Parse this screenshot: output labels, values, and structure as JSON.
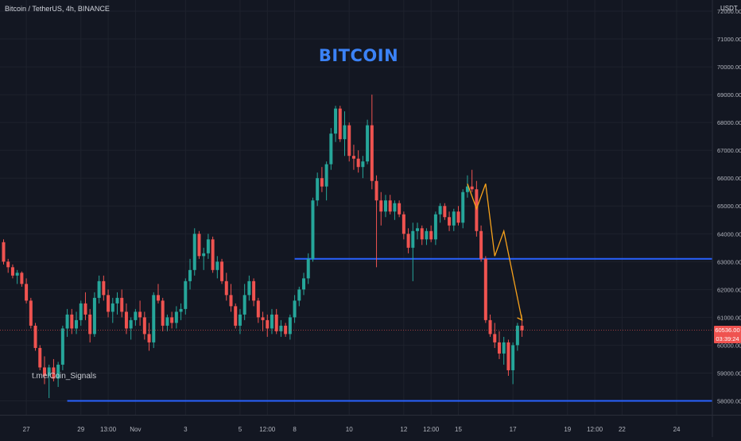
{
  "header": {
    "symbol": "Bitcoin / TetherUS, 4h, BINANCE",
    "currency": "USDT"
  },
  "headline": "BITCOIN",
  "watermark": "t.me/Coin_Signals",
  "last_price": {
    "price": "60536.00",
    "countdown": "03:39:24"
  },
  "colors": {
    "background": "#131722",
    "up": "#26a69a",
    "down": "#ef5350",
    "levels": "#2962ff",
    "projection": "#f7a21b",
    "headline": "#3b82f6"
  },
  "chart_data": {
    "type": "candlestick",
    "ylim": [
      57500,
      72400
    ],
    "y_ticks": [
      58000,
      59000,
      60000,
      61000,
      62000,
      63000,
      64000,
      65000,
      66000,
      67000,
      68000,
      69000,
      70000,
      71000,
      72000
    ],
    "x_ticks": [
      {
        "label": "27",
        "index": 5
      },
      {
        "label": "29",
        "index": 17
      },
      {
        "label": "13:00",
        "index": 23
      },
      {
        "label": "Nov",
        "index": 29
      },
      {
        "label": "3",
        "index": 40
      },
      {
        "label": "5",
        "index": 52
      },
      {
        "label": "12:00",
        "index": 58
      },
      {
        "label": "8",
        "index": 64
      },
      {
        "label": "10",
        "index": 76
      },
      {
        "label": "12",
        "index": 88
      },
      {
        "label": "12:00",
        "index": 94
      },
      {
        "label": "15",
        "index": 100
      },
      {
        "label": "17",
        "index": 112
      },
      {
        "label": "19",
        "index": 124
      },
      {
        "label": "12:00",
        "index": 130
      },
      {
        "label": "22",
        "index": 136
      },
      {
        "label": "24",
        "index": 148
      }
    ],
    "candles": [
      [
        63700,
        63800,
        62900,
        63000
      ],
      [
        63000,
        63100,
        62600,
        62800
      ],
      [
        62800,
        62900,
        62400,
        62500
      ],
      [
        62500,
        62700,
        62200,
        62600
      ],
      [
        62600,
        62650,
        62100,
        62200
      ],
      [
        62200,
        62400,
        61500,
        61600
      ],
      [
        61600,
        61700,
        60600,
        60700
      ],
      [
        60700,
        60800,
        59800,
        59900
      ],
      [
        59900,
        60000,
        59100,
        59200
      ],
      [
        59200,
        59600,
        58600,
        58900
      ],
      [
        58900,
        59300,
        58100,
        59200
      ],
      [
        59200,
        59500,
        58700,
        58800
      ],
      [
        58800,
        59400,
        58500,
        59300
      ],
      [
        59300,
        60700,
        59100,
        60600
      ],
      [
        60600,
        61300,
        60300,
        61100
      ],
      [
        61100,
        61300,
        60400,
        60600
      ],
      [
        60600,
        61200,
        60400,
        60900
      ],
      [
        60900,
        61600,
        60700,
        61500
      ],
      [
        61500,
        61900,
        60900,
        61100
      ],
      [
        61100,
        61300,
        60100,
        60400
      ],
      [
        60400,
        61900,
        60300,
        61700
      ],
      [
        61700,
        62500,
        61500,
        62300
      ],
      [
        62300,
        62500,
        61600,
        61800
      ],
      [
        61800,
        62000,
        61000,
        61200
      ],
      [
        61200,
        61700,
        60800,
        61500
      ],
      [
        61500,
        61900,
        61100,
        61700
      ],
      [
        61700,
        62000,
        61000,
        61200
      ],
      [
        61200,
        61500,
        60400,
        60600
      ],
      [
        60600,
        61000,
        60200,
        60900
      ],
      [
        60900,
        61300,
        60700,
        61200
      ],
      [
        61200,
        61600,
        60700,
        61000
      ],
      [
        61000,
        61200,
        60200,
        60400
      ],
      [
        60400,
        60800,
        59800,
        60100
      ],
      [
        60100,
        61900,
        59900,
        61800
      ],
      [
        61800,
        62200,
        61500,
        61600
      ],
      [
        61600,
        61700,
        60500,
        60700
      ],
      [
        60700,
        61100,
        60500,
        61000
      ],
      [
        61000,
        61200,
        60600,
        60800
      ],
      [
        60800,
        61400,
        60600,
        61200
      ],
      [
        61200,
        61500,
        60900,
        61300
      ],
      [
        61300,
        62400,
        61100,
        62300
      ],
      [
        62300,
        63100,
        62000,
        62700
      ],
      [
        62700,
        64200,
        62500,
        64000
      ],
      [
        64000,
        64100,
        63100,
        63200
      ],
      [
        63200,
        63500,
        62700,
        63300
      ],
      [
        63300,
        64000,
        63100,
        63800
      ],
      [
        63800,
        63900,
        62600,
        62700
      ],
      [
        62700,
        63200,
        62400,
        63000
      ],
      [
        63000,
        63100,
        62200,
        62300
      ],
      [
        62300,
        62600,
        61600,
        61800
      ],
      [
        61800,
        62200,
        61200,
        61400
      ],
      [
        61400,
        61500,
        60600,
        60700
      ],
      [
        60700,
        61300,
        60400,
        61100
      ],
      [
        61100,
        62200,
        60900,
        61800
      ],
      [
        61800,
        62500,
        61600,
        62300
      ],
      [
        62300,
        62400,
        61400,
        61600
      ],
      [
        61600,
        61700,
        60800,
        61000
      ],
      [
        61000,
        61200,
        60500,
        60900
      ],
      [
        60900,
        61100,
        60300,
        60600
      ],
      [
        60600,
        61300,
        60400,
        61100
      ],
      [
        61100,
        61300,
        60400,
        60500
      ],
      [
        60500,
        60900,
        60300,
        60700
      ],
      [
        60700,
        60800,
        60300,
        60400
      ],
      [
        60400,
        61100,
        60200,
        61000
      ],
      [
        61000,
        61800,
        60800,
        61600
      ],
      [
        61600,
        62100,
        61400,
        62000
      ],
      [
        62000,
        62600,
        61800,
        62400
      ],
      [
        62400,
        63300,
        62200,
        63100
      ],
      [
        63100,
        65300,
        63000,
        65200
      ],
      [
        65200,
        66200,
        65000,
        66000
      ],
      [
        66000,
        66400,
        65500,
        65700
      ],
      [
        65700,
        66600,
        65200,
        66500
      ],
      [
        66500,
        67800,
        66300,
        67600
      ],
      [
        67600,
        68600,
        67300,
        68500
      ],
      [
        68500,
        68600,
        67300,
        67400
      ],
      [
        67400,
        68400,
        66800,
        67900
      ],
      [
        67900,
        68000,
        66600,
        66800
      ],
      [
        66800,
        67200,
        66300,
        66700
      ],
      [
        66700,
        67000,
        66200,
        66400
      ],
      [
        66400,
        66800,
        66000,
        66600
      ],
      [
        66600,
        68100,
        66500,
        67900
      ],
      [
        67900,
        69000,
        65600,
        65900
      ],
      [
        65900,
        66100,
        62800,
        65200
      ],
      [
        65200,
        65500,
        64300,
        64800
      ],
      [
        64800,
        65400,
        64600,
        65200
      ],
      [
        65200,
        65400,
        64700,
        64800
      ],
      [
        64800,
        65200,
        64500,
        65100
      ],
      [
        65100,
        65200,
        64600,
        64700
      ],
      [
        64700,
        64800,
        63800,
        64000
      ],
      [
        64000,
        64200,
        63300,
        63500
      ],
      [
        63500,
        64400,
        62300,
        64100
      ],
      [
        64100,
        64400,
        63800,
        64200
      ],
      [
        64200,
        64300,
        63600,
        63800
      ],
      [
        63800,
        64200,
        63600,
        64100
      ],
      [
        64100,
        64300,
        63700,
        63800
      ],
      [
        63800,
        64800,
        63600,
        64700
      ],
      [
        64700,
        65100,
        64400,
        65000
      ],
      [
        65000,
        65100,
        64500,
        64600
      ],
      [
        64600,
        64800,
        64100,
        64300
      ],
      [
        64300,
        64900,
        64100,
        64800
      ],
      [
        64800,
        65000,
        64300,
        64400
      ],
      [
        64400,
        65600,
        64200,
        65500
      ],
      [
        65500,
        66100,
        65300,
        65700
      ],
      [
        65700,
        66300,
        65500,
        65600
      ],
      [
        65600,
        65900,
        63900,
        64100
      ],
      [
        64100,
        64300,
        63000,
        63100
      ],
      [
        63100,
        63200,
        60800,
        60900
      ],
      [
        60900,
        61100,
        60300,
        60400
      ],
      [
        60400,
        60800,
        59900,
        60100
      ],
      [
        60100,
        60500,
        59500,
        59700
      ],
      [
        59700,
        60300,
        59300,
        60100
      ],
      [
        60100,
        60200,
        58900,
        59100
      ],
      [
        59100,
        60100,
        58600,
        60000
      ],
      [
        60000,
        60800,
        59800,
        60700
      ],
      [
        60700,
        60900,
        60300,
        60536
      ]
    ],
    "levels": [
      {
        "price": 63100,
        "from_index": 64
      },
      {
        "price": 58000,
        "from_index": 14
      }
    ],
    "projection": [
      [
        102,
        65800
      ],
      [
        104,
        64900
      ],
      [
        106,
        65800
      ],
      [
        108,
        63200
      ],
      [
        110,
        64100
      ],
      [
        114,
        60900
      ]
    ]
  }
}
